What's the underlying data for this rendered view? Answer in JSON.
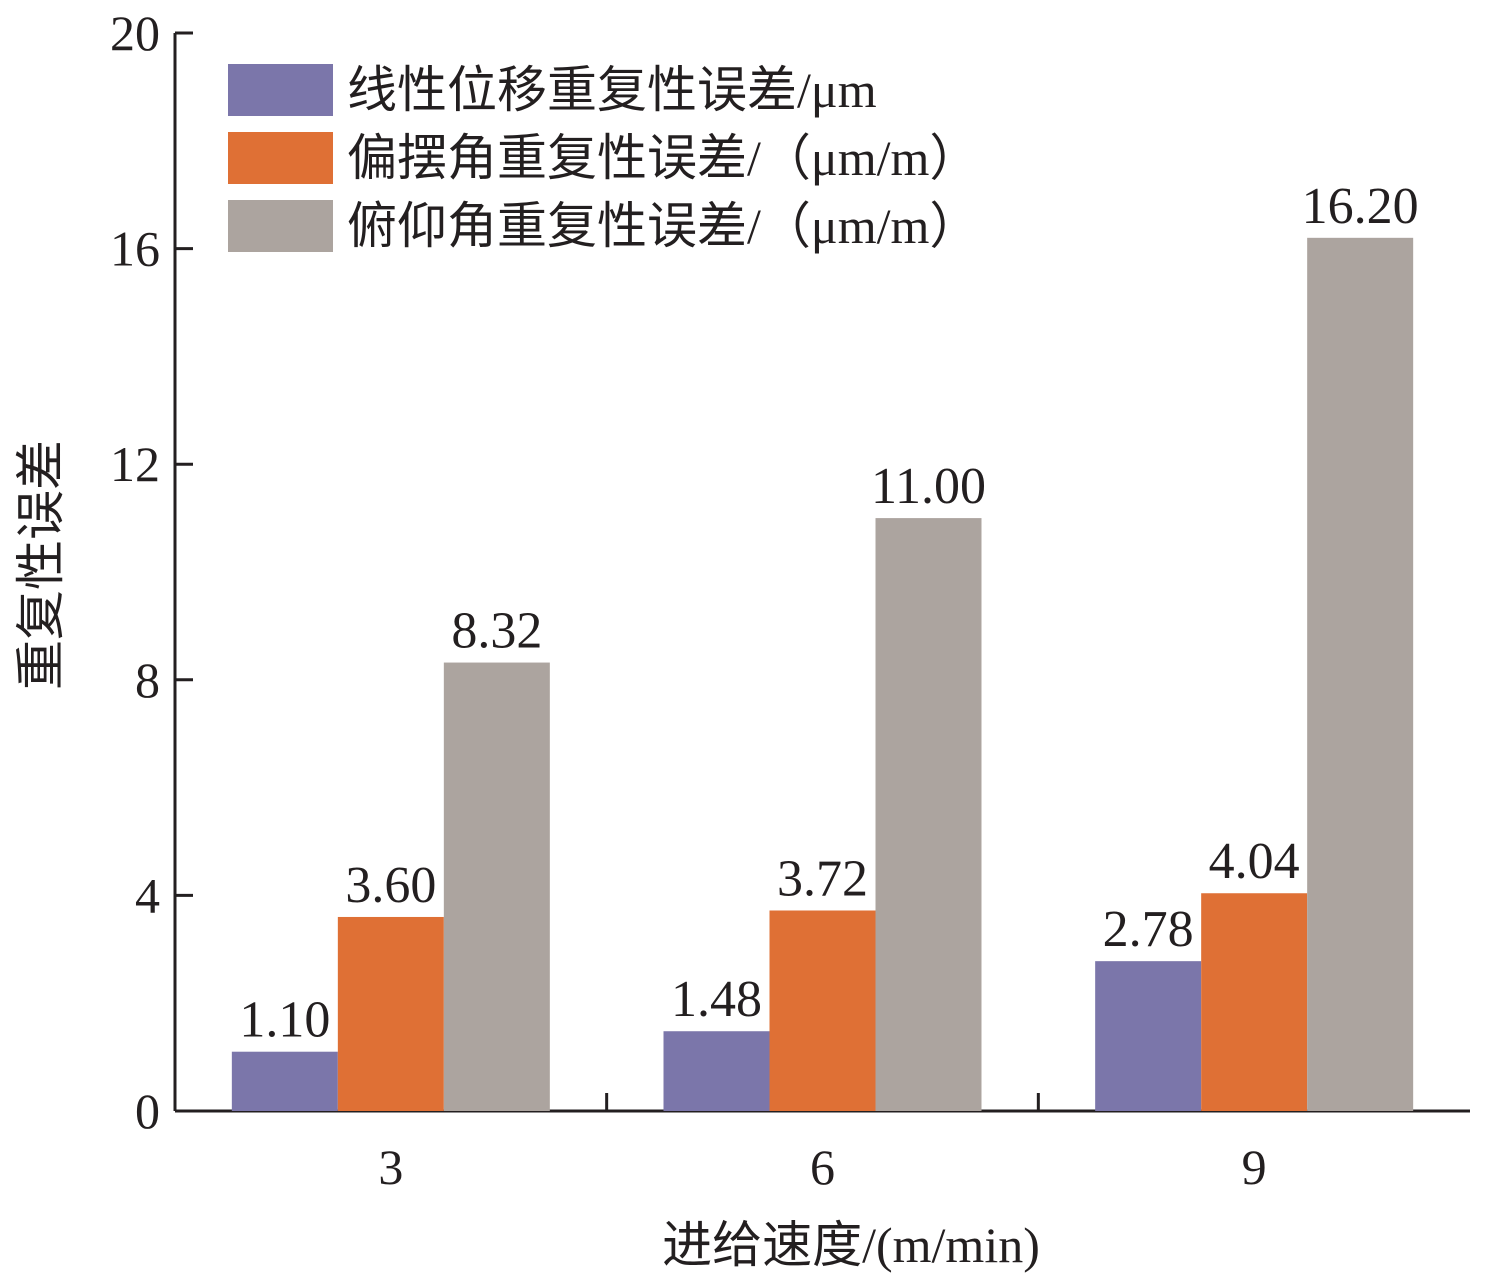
{
  "chart_data": {
    "type": "bar",
    "title": "",
    "xlabel": "进给速度/(m/min)",
    "ylabel": "重复性误差",
    "categories": [
      "3",
      "6",
      "9"
    ],
    "series": [
      {
        "name": "线性位移重复性误差/μm",
        "color": "#7b76aa",
        "values": [
          1.1,
          1.48,
          2.78
        ],
        "labels": [
          "1.10",
          "1.48",
          "2.78"
        ]
      },
      {
        "name": "偏摆角重复性误差/（μm/m）",
        "color": "#df7035",
        "values": [
          3.6,
          3.72,
          4.04
        ],
        "labels": [
          "3.60",
          "3.72",
          "4.04"
        ]
      },
      {
        "name": "俯仰角重复性误差/（μm/m）",
        "color": "#aca49f",
        "values": [
          8.32,
          11.0,
          16.2
        ],
        "labels": [
          "8.32",
          "11.00",
          "16.20"
        ]
      }
    ],
    "ylim": [
      0,
      20
    ],
    "yticks": [
      "0",
      "4",
      "8",
      "12",
      "16",
      "20"
    ],
    "grid": false,
    "legend_position": "top-left"
  }
}
